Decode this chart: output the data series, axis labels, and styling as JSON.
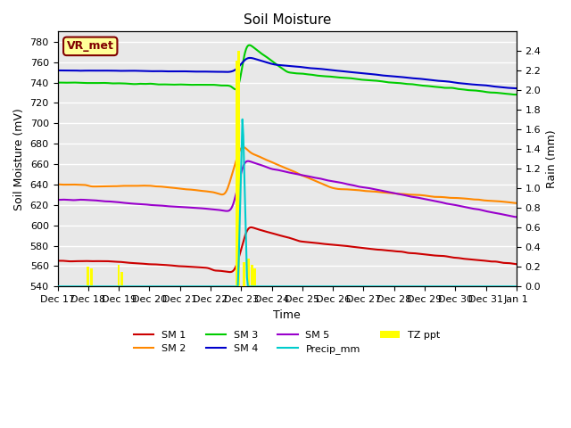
{
  "title": "Soil Moisture",
  "xlabel": "Time",
  "ylabel_left": "Soil Moisture (mV)",
  "ylabel_right": "Rain (mm)",
  "ylim_left": [
    540,
    790
  ],
  "ylim_right": [
    0.0,
    2.6
  ],
  "background_color": "#e8e8e8",
  "annotation_text": "VR_met",
  "annotation_box_color": "#ffff99",
  "annotation_border_color": "#800000",
  "annotation_text_color": "#800000",
  "xtick_labels": [
    "Dec 17",
    "Dec 18",
    "Dec 19",
    "Dec 20",
    "Dec 21",
    "Dec 22",
    "Dec 23",
    "Dec 24",
    "Dec 25",
    "Dec 26",
    "Dec 27",
    "Dec 28",
    "Dec 29",
    "Dec 30",
    "Dec 31",
    "Jan 1"
  ],
  "sm1_color": "#cc0000",
  "sm2_color": "#ff8800",
  "sm3_color": "#00cc00",
  "sm4_color": "#0000cc",
  "sm5_color": "#9900cc",
  "precip_color": "#00cccc",
  "tz_color": "#ffff00"
}
